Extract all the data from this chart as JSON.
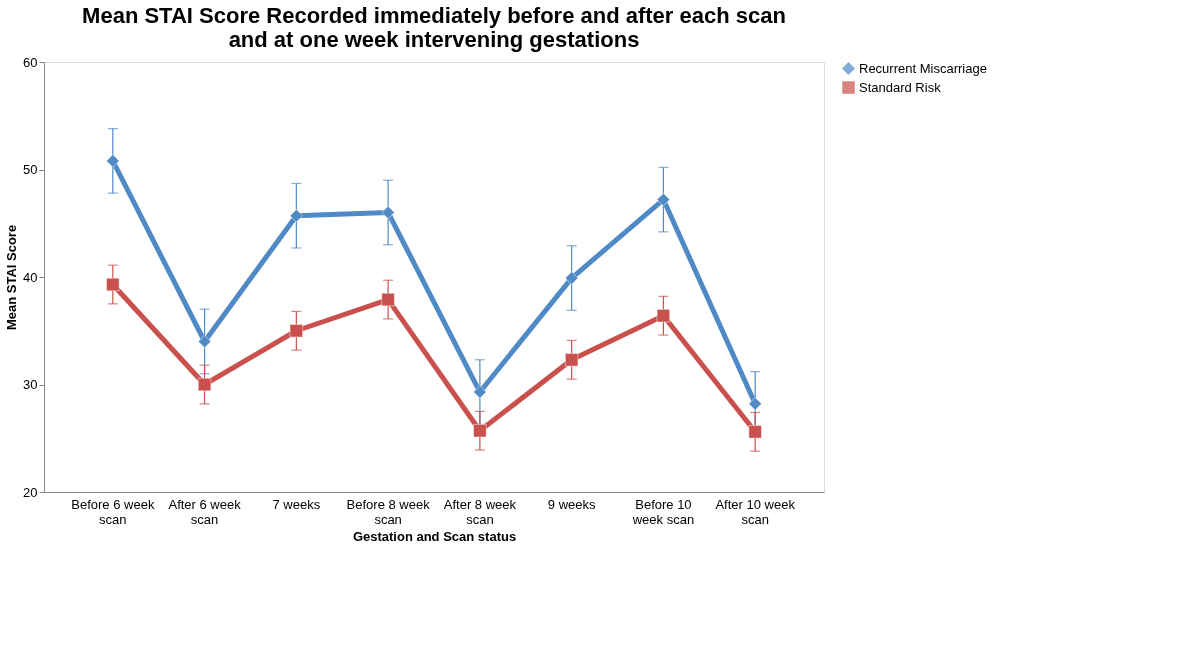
{
  "chart_data": {
    "type": "line",
    "title": "Mean STAI Score Recorded immediately before and after each scan and at one week intervening gestations",
    "xlabel": "Gestation and Scan status",
    "ylabel": "Mean STAI Score",
    "categories": [
      "Before 6 week scan",
      "After 6 week scan",
      "7 weeks",
      "Before 8 week scan",
      "After 8 week scan",
      "9 weeks",
      "Before 10 week scan",
      "After 10 week scan"
    ],
    "series": [
      {
        "name": "Recurrent Miscarriage",
        "color": "#4f8ac6",
        "marker": "diamond",
        "values": [
          50.8,
          34.0,
          45.7,
          46.0,
          29.3,
          39.9,
          47.2,
          28.2
        ],
        "errors": [
          3,
          3,
          3,
          3,
          3,
          3,
          3,
          3
        ]
      },
      {
        "name": "Standard Risk",
        "color": "#c9504c",
        "marker": "square",
        "values": [
          39.3,
          30.0,
          35.0,
          37.9,
          25.7,
          32.3,
          36.4,
          25.6
        ],
        "errors": [
          1.8,
          1.8,
          1.8,
          1.8,
          1.8,
          1.8,
          1.8,
          1.8
        ]
      }
    ],
    "ylim": [
      20,
      60
    ],
    "yticks": [
      20,
      30,
      40,
      50,
      60
    ],
    "grid": false,
    "legend": "right"
  }
}
